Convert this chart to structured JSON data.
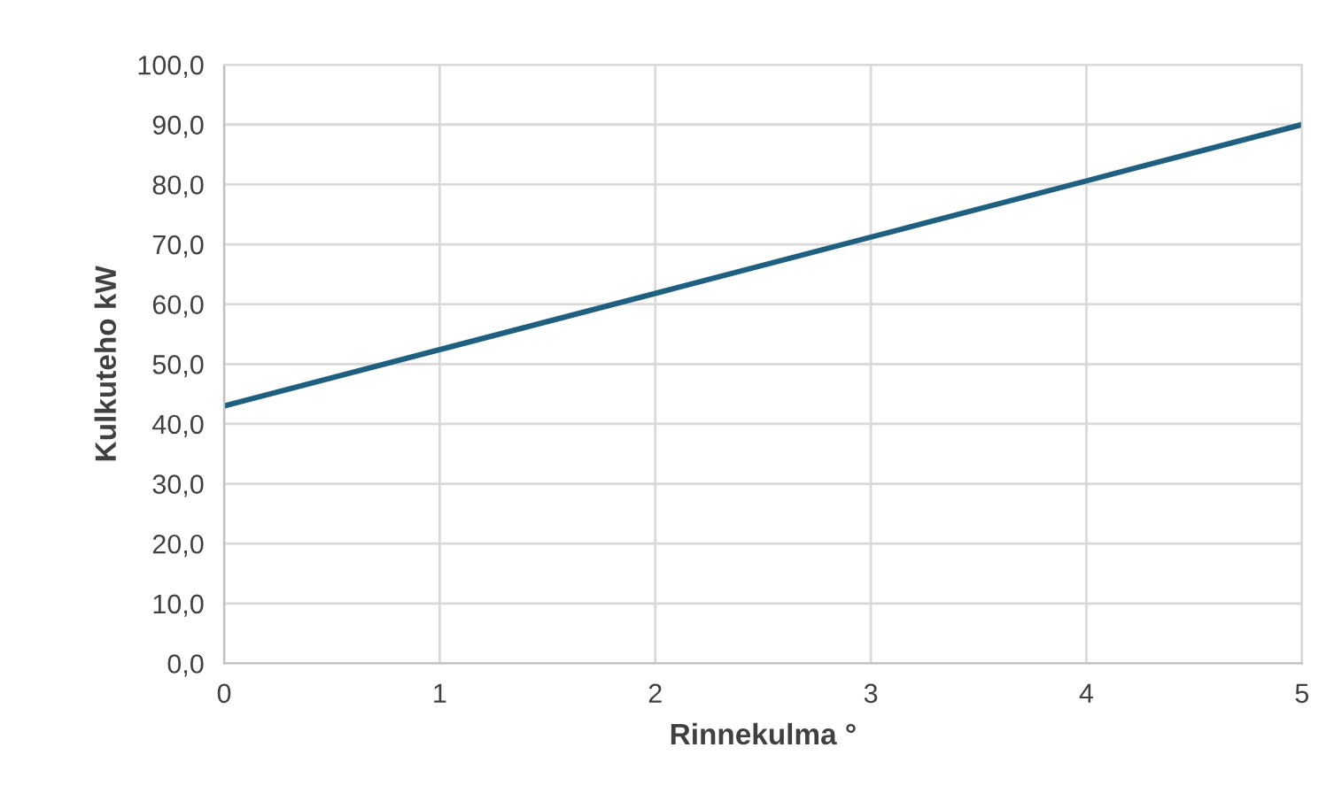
{
  "chart_data": {
    "type": "line",
    "xlabel": "Rinnekulma °",
    "ylabel": "Kulkuteho kW",
    "x": [
      0,
      1,
      2,
      3,
      4,
      5
    ],
    "series": [
      {
        "color": "#1f5f80",
        "values": [
          43.0,
          52.4,
          61.8,
          71.2,
          80.6,
          90.0
        ]
      }
    ],
    "xlim": [
      0,
      5
    ],
    "xticks": [
      0,
      1,
      2,
      3,
      4,
      5
    ],
    "ylim": [
      0,
      100
    ],
    "yticks": [
      {
        "value": 0,
        "label": "0,0"
      },
      {
        "value": 10,
        "label": "10,0"
      },
      {
        "value": 20,
        "label": "20,0"
      },
      {
        "value": 30,
        "label": "30,0"
      },
      {
        "value": 40,
        "label": "40,0"
      },
      {
        "value": 50,
        "label": "50,0"
      },
      {
        "value": 60,
        "label": "60,0"
      },
      {
        "value": 70,
        "label": "70,0"
      },
      {
        "value": 80,
        "label": "80,0"
      },
      {
        "value": 90,
        "label": "90,0"
      },
      {
        "value": 100,
        "label": "100,0"
      }
    ],
    "grid": true
  }
}
